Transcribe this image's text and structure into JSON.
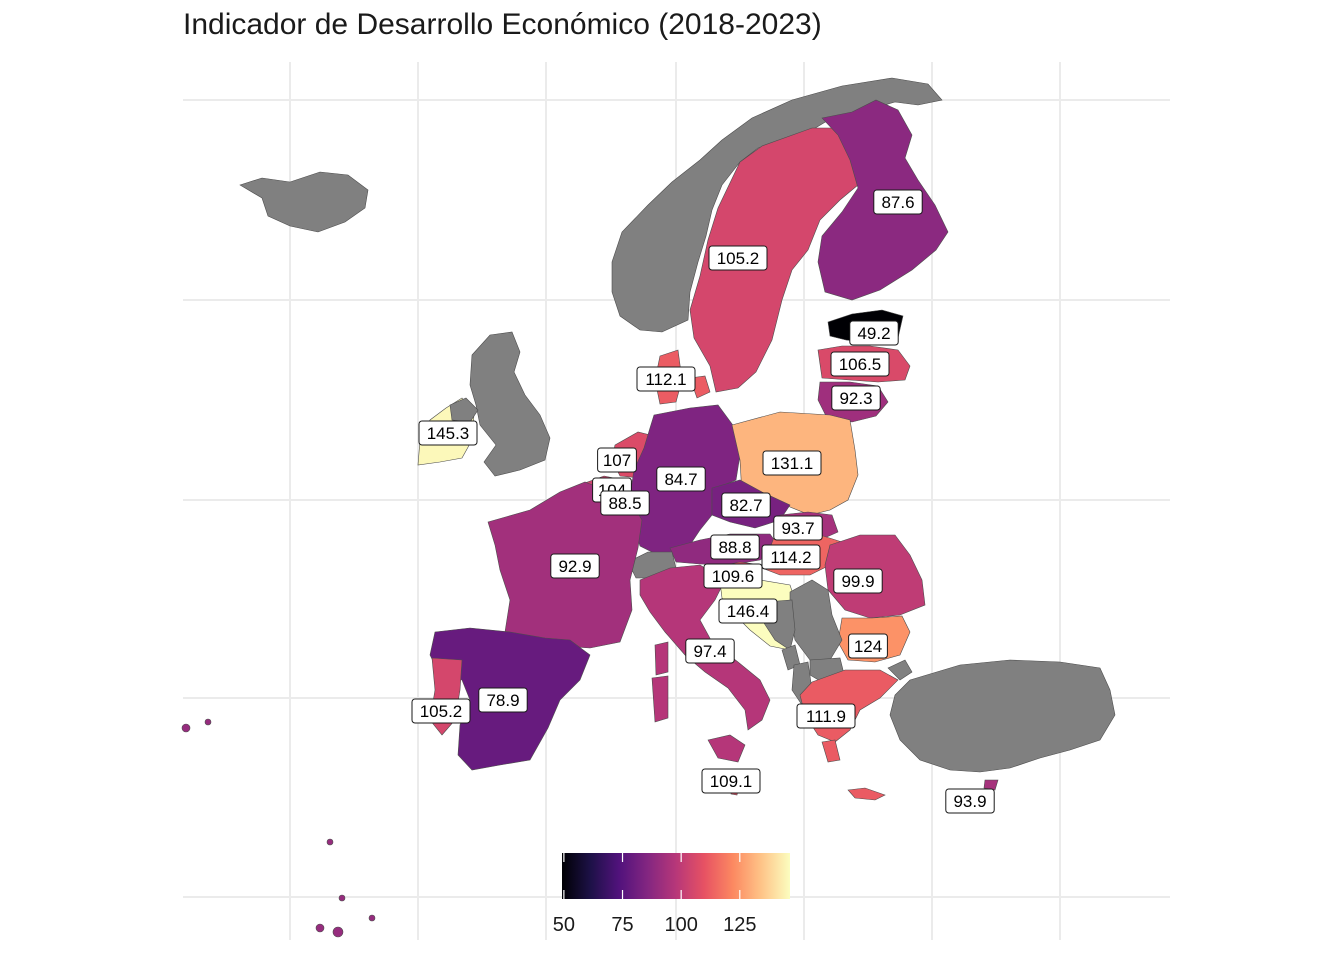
{
  "title": "Indicador de Desarrollo Económico (2018-2023)",
  "colors": {
    "no_data": "#808080",
    "border": "#4d4d4d",
    "grid": "#ebebeb",
    "scale": [
      "#000004",
      "#1d1147",
      "#51127c",
      "#832681",
      "#b73779",
      "#e75263",
      "#fc8961",
      "#fec488",
      "#fcfdbf"
    ]
  },
  "legend": {
    "min": 49.2,
    "max": 146.4,
    "ticks": [
      "50",
      "75",
      "100",
      "125"
    ],
    "tick_values": [
      50,
      75,
      100,
      125
    ],
    "placement": "bottom"
  },
  "chart_data": {
    "type": "choropleth",
    "title": "Indicador de Desarrollo Económico (2018-2023)",
    "regions": [
      {
        "name": "Estonia",
        "value": 49.2
      },
      {
        "name": "Spain",
        "value": 78.9
      },
      {
        "name": "Czechia",
        "value": 82.7
      },
      {
        "name": "Germany",
        "value": 84.7
      },
      {
        "name": "Finland",
        "value": 87.6
      },
      {
        "name": "Luxembourg",
        "value": 88.5
      },
      {
        "name": "Austria",
        "value": 88.8
      },
      {
        "name": "Lithuania",
        "value": 92.3
      },
      {
        "name": "France",
        "value": 92.9
      },
      {
        "name": "Slovakia",
        "value": 93.7
      },
      {
        "name": "Cyprus",
        "value": 93.9
      },
      {
        "name": "Italy",
        "value": 97.4
      },
      {
        "name": "Romania",
        "value": 99.9
      },
      {
        "name": "Belgium",
        "value": 104
      },
      {
        "name": "Sweden",
        "value": 105.2
      },
      {
        "name": "Portugal",
        "value": 105.2
      },
      {
        "name": "Latvia",
        "value": 106.5
      },
      {
        "name": "Netherlands",
        "value": 107
      },
      {
        "name": "Malta",
        "value": 109.1
      },
      {
        "name": "Slovenia",
        "value": 109.6
      },
      {
        "name": "Greece",
        "value": 111.9
      },
      {
        "name": "Denmark",
        "value": 112.1
      },
      {
        "name": "Hungary",
        "value": 114.2
      },
      {
        "name": "Bulgaria",
        "value": 124
      },
      {
        "name": "Poland",
        "value": 131.1
      },
      {
        "name": "Ireland",
        "value": 145.3
      },
      {
        "name": "Croatia",
        "value": 146.4
      }
    ],
    "no_data_regions": [
      "Iceland",
      "Norway",
      "United Kingdom",
      "Switzerland",
      "Serbia",
      "Bosnia and Herzegovina",
      "Montenegro",
      "Albania",
      "North Macedonia",
      "Turkey"
    ]
  }
}
